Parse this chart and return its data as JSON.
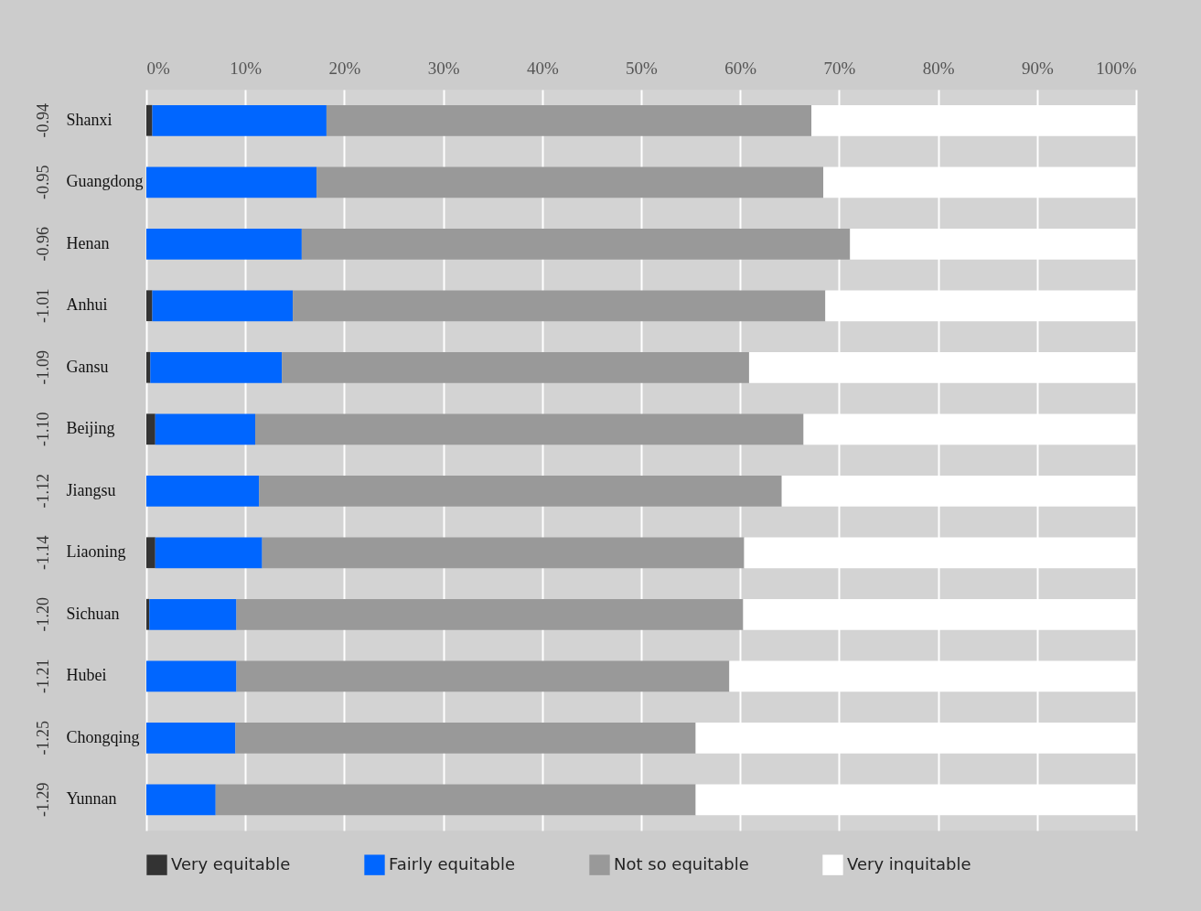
{
  "chart_data": {
    "type": "bar",
    "orientation": "horizontal",
    "stacked": true,
    "grid": "x",
    "legend": "bottom",
    "categories": [
      "Shanxi",
      "Guangdong",
      "Henan",
      "Anhui",
      "Gansu",
      "Beijing",
      "Jiangsu",
      "Liaoning",
      "Sichuan",
      "Hubei",
      "Chongqing",
      "Yunnan"
    ],
    "xlim": [
      0,
      100
    ],
    "xticks": [
      {
        "value": 0,
        "label": "0%"
      },
      {
        "value": 10,
        "label": "10%"
      },
      {
        "value": 20,
        "label": "20%"
      },
      {
        "value": 30,
        "label": "30%"
      },
      {
        "value": 40,
        "label": "40%"
      },
      {
        "value": 50,
        "label": "50%"
      },
      {
        "value": 60,
        "label": "60%"
      },
      {
        "value": 70,
        "label": "70%"
      },
      {
        "value": 80,
        "label": "80%"
      },
      {
        "value": 90,
        "label": "90%"
      },
      {
        "value": 100,
        "label": "100%"
      }
    ],
    "series": [
      {
        "name": "Very equitable",
        "color": "#333333",
        "values": [
          0.6,
          0,
          0,
          0.6,
          0.4,
          0.9,
          0,
          0.9,
          0.3,
          0,
          0,
          0
        ]
      },
      {
        "name": "Fairly equitable",
        "color": "#0066ff",
        "values": [
          17.6,
          17.2,
          15.7,
          14.2,
          13.3,
          10.1,
          11.4,
          10.8,
          8.8,
          9.1,
          9.0,
          7.0
        ]
      },
      {
        "name": "Not so equitable",
        "color": "#999999",
        "values": [
          49.0,
          51.2,
          55.4,
          53.8,
          47.2,
          55.4,
          52.8,
          48.7,
          51.2,
          49.8,
          46.5,
          48.5
        ]
      },
      {
        "name": "Very inquitable",
        "color": "#ffffff",
        "values": [
          32.8,
          31.6,
          28.9,
          31.4,
          39.1,
          33.6,
          35.8,
          39.6,
          39.7,
          41.1,
          44.5,
          44.5
        ]
      }
    ],
    "annotations": [
      "-0.94",
      "-0.95",
      "-0.96",
      "-1.01",
      "-1.09",
      "-1.10",
      "-1.12",
      "-1.14",
      "-1.20",
      "-1.21",
      "-1.25",
      "-1.29"
    ]
  }
}
